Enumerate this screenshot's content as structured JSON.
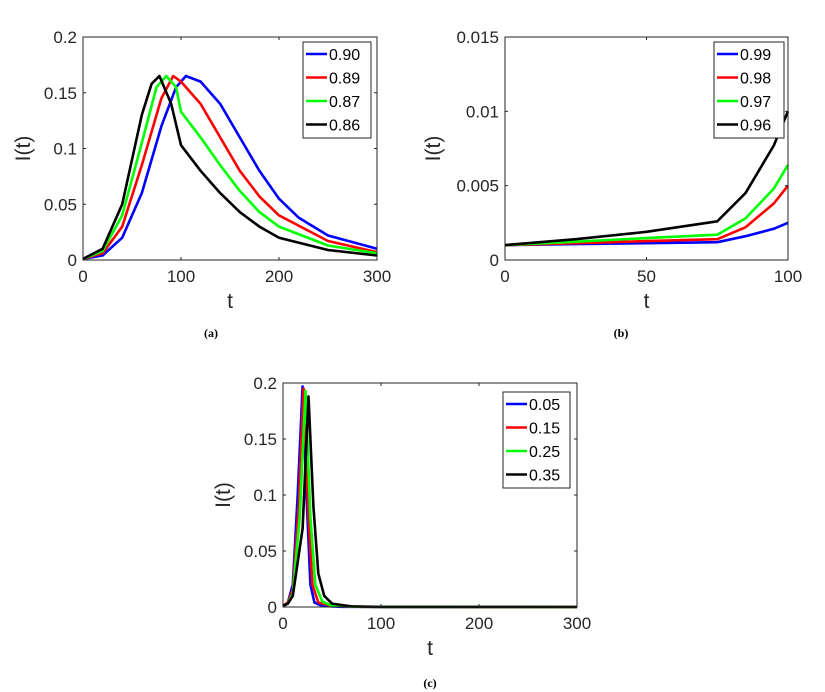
{
  "chart_data": [
    {
      "id": "a",
      "type": "line",
      "caption": "(a)",
      "xlabel": "t",
      "ylabel": "I(t)",
      "xlim": [
        0,
        300
      ],
      "ylim": [
        0,
        0.2
      ],
      "xticks": [
        "0",
        "100",
        "200",
        "300"
      ],
      "xtick_values": [
        0,
        100,
        200,
        300
      ],
      "yticks": [
        "0",
        "0.05",
        "0.1",
        "0.15",
        "0.2"
      ],
      "ytick_values": [
        0,
        0.05,
        0.1,
        0.15,
        0.2
      ],
      "legend_position": "top-right",
      "series": [
        {
          "name": "0.90",
          "color": "#0000ff",
          "x": [
            0,
            20,
            40,
            60,
            80,
            95,
            105,
            120,
            140,
            160,
            180,
            200,
            220,
            250,
            300
          ],
          "y": [
            0.001,
            0.004,
            0.02,
            0.06,
            0.12,
            0.155,
            0.165,
            0.16,
            0.14,
            0.11,
            0.08,
            0.055,
            0.038,
            0.022,
            0.01
          ]
        },
        {
          "name": "0.89",
          "color": "#ff0000",
          "x": [
            0,
            20,
            40,
            60,
            80,
            92,
            100,
            120,
            140,
            160,
            180,
            200,
            250,
            300
          ],
          "y": [
            0.001,
            0.006,
            0.03,
            0.085,
            0.145,
            0.165,
            0.16,
            0.14,
            0.11,
            0.08,
            0.057,
            0.04,
            0.017,
            0.007
          ]
        },
        {
          "name": "0.87",
          "color": "#00ff00",
          "x": [
            0,
            20,
            40,
            60,
            75,
            85,
            95,
            100,
            120,
            140,
            160,
            180,
            200,
            250,
            300
          ],
          "y": [
            0.001,
            0.008,
            0.04,
            0.105,
            0.155,
            0.165,
            0.155,
            0.133,
            0.11,
            0.085,
            0.062,
            0.043,
            0.03,
            0.013,
            0.006
          ]
        },
        {
          "name": "0.86",
          "color": "#000000",
          "x": [
            0,
            20,
            40,
            60,
            70,
            78,
            90,
            100,
            120,
            140,
            160,
            180,
            200,
            250,
            300
          ],
          "y": [
            0.001,
            0.01,
            0.05,
            0.13,
            0.158,
            0.165,
            0.14,
            0.103,
            0.08,
            0.06,
            0.043,
            0.03,
            0.02,
            0.009,
            0.004
          ]
        }
      ]
    },
    {
      "id": "b",
      "type": "line",
      "caption": "(b)",
      "xlabel": "t",
      "ylabel": "I(t)",
      "xlim": [
        0,
        100
      ],
      "ylim": [
        0,
        0.015
      ],
      "xticks": [
        "0",
        "50",
        "100"
      ],
      "xtick_values": [
        0,
        50,
        100
      ],
      "yticks": [
        "0",
        "0.005",
        "0.01",
        "0.015"
      ],
      "ytick_values": [
        0,
        0.005,
        0.01,
        0.015
      ],
      "legend_position": "top-right",
      "series": [
        {
          "name": "0.99",
          "color": "#0000ff",
          "x": [
            0,
            25,
            50,
            75,
            85,
            95,
            100
          ],
          "y": [
            0.001,
            0.00107,
            0.00113,
            0.0012,
            0.0016,
            0.0021,
            0.0025
          ]
        },
        {
          "name": "0.98",
          "color": "#ff0000",
          "x": [
            0,
            25,
            50,
            75,
            85,
            95,
            100
          ],
          "y": [
            0.001,
            0.00113,
            0.00127,
            0.0014,
            0.0022,
            0.0038,
            0.005
          ]
        },
        {
          "name": "0.97",
          "color": "#00ff00",
          "x": [
            0,
            25,
            50,
            75,
            85,
            95,
            100
          ],
          "y": [
            0.001,
            0.00123,
            0.00147,
            0.0017,
            0.0028,
            0.0048,
            0.0064
          ]
        },
        {
          "name": "0.96",
          "color": "#000000",
          "x": [
            0,
            25,
            50,
            75,
            85,
            95,
            100
          ],
          "y": [
            0.001,
            0.0014,
            0.0019,
            0.0026,
            0.0045,
            0.0077,
            0.01
          ]
        }
      ]
    },
    {
      "id": "c",
      "type": "line",
      "caption": "(c)",
      "xlabel": "t",
      "ylabel": "I(t)",
      "xlim": [
        0,
        300
      ],
      "ylim": [
        0,
        0.2
      ],
      "xticks": [
        "0",
        "100",
        "200",
        "300"
      ],
      "xtick_values": [
        0,
        100,
        200,
        300
      ],
      "yticks": [
        "0",
        "0.05",
        "0.1",
        "0.15",
        "0.2"
      ],
      "ytick_values": [
        0,
        0.05,
        0.1,
        0.15,
        0.2
      ],
      "legend_position": "top-right",
      "series": [
        {
          "name": "0.05",
          "color": "#0000ff",
          "x": [
            0,
            5,
            10,
            15,
            20,
            24,
            28,
            32,
            40,
            60,
            300
          ],
          "y": [
            0.001,
            0.004,
            0.02,
            0.1,
            0.197,
            0.1,
            0.02,
            0.004,
            0.001,
            0.0002,
            0
          ]
        },
        {
          "name": "0.15",
          "color": "#ff0000",
          "x": [
            0,
            5,
            10,
            16,
            21,
            26,
            30,
            36,
            50,
            80,
            300
          ],
          "y": [
            0.001,
            0.004,
            0.015,
            0.09,
            0.195,
            0.08,
            0.02,
            0.004,
            0.001,
            0.0002,
            0
          ]
        },
        {
          "name": "0.25",
          "color": "#00ff00",
          "x": [
            0,
            5,
            10,
            17,
            23,
            28,
            33,
            40,
            50,
            80,
            300
          ],
          "y": [
            0.001,
            0.003,
            0.012,
            0.08,
            0.193,
            0.08,
            0.02,
            0.005,
            0.001,
            0.0002,
            0
          ]
        },
        {
          "name": "0.35",
          "color": "#000000",
          "x": [
            0,
            5,
            10,
            20,
            26,
            31,
            36,
            42,
            50,
            70,
            100,
            300
          ],
          "y": [
            0.001,
            0.003,
            0.01,
            0.07,
            0.188,
            0.09,
            0.03,
            0.01,
            0.003,
            0.0005,
            0.0001,
            0
          ]
        }
      ]
    }
  ]
}
